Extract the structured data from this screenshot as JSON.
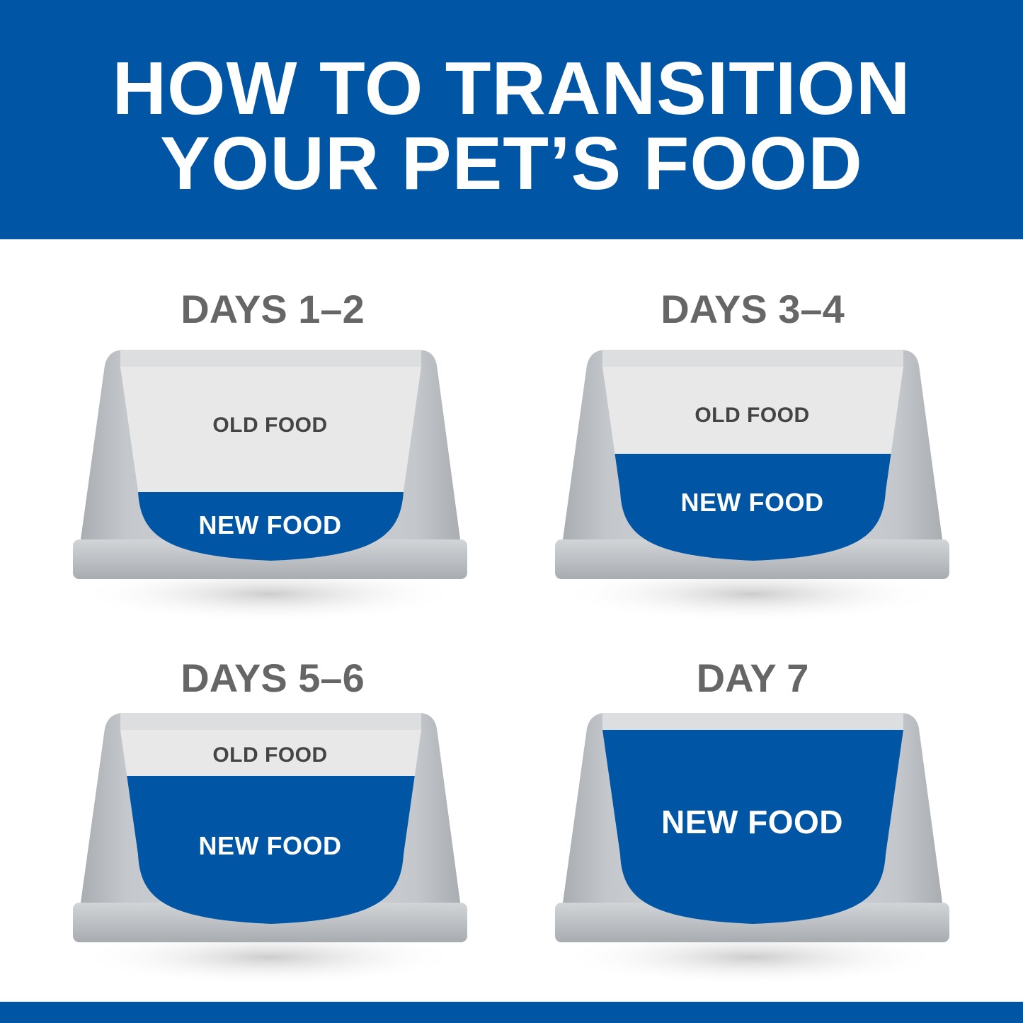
{
  "header": {
    "title_line1": "HOW TO TRANSITION",
    "title_line2": "YOUR PET’S FOOD"
  },
  "colors": {
    "brand_blue": "#0055A5",
    "heading_gray": "#666666",
    "old_food": "#E8E8E8",
    "bowl_gray": "#BFC3C7"
  },
  "steps": [
    {
      "title": "DAYS 1–2",
      "old_label": "OLD FOOD",
      "new_label": "NEW FOOD",
      "new_food_percent": 25
    },
    {
      "title": "DAYS 3–4",
      "old_label": "OLD FOOD",
      "new_label": "NEW FOOD",
      "new_food_percent": 50
    },
    {
      "title": "DAYS 5–6",
      "old_label": "OLD FOOD",
      "new_label": "NEW FOOD",
      "new_food_percent": 75
    },
    {
      "title": "DAY 7",
      "new_label": "NEW FOOD",
      "new_food_percent": 100
    }
  ]
}
